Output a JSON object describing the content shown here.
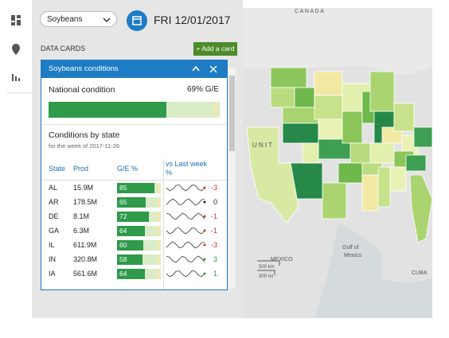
{
  "toolbar": {
    "crop": "Soybeans",
    "date": "FRI 12/01/2017"
  },
  "panel": {
    "heading": "DATA CARDS",
    "add_button": "+ Add a card"
  },
  "card": {
    "title": "Soybeans conditions",
    "national_label": "National condition",
    "national_value": 69,
    "national_value_label": "69% G/E",
    "section_title": "Conditions by state",
    "section_subtitle": "for the week of 2017-11-26",
    "columns": [
      "State",
      "Prod",
      "G/E %",
      "vs Last week %"
    ],
    "rows": [
      [
        "AL",
        "15.9M",
        85,
        -3
      ],
      [
        "AR",
        "178.5M",
        65,
        0
      ],
      [
        "DE",
        "8.1M",
        72,
        -1
      ],
      [
        "GA",
        "6.3M",
        64,
        -1
      ],
      [
        "IL",
        "611.9M",
        60,
        -3
      ],
      [
        "IN",
        "320.8M",
        58,
        3
      ],
      [
        "IA",
        "561.6M",
        64,
        1
      ]
    ]
  },
  "map": {
    "labels": [
      "C A N A D A",
      "U N I T",
      "MEXICO",
      "Gulf of",
      "Mexico",
      "CUBA",
      "500 km",
      "300 mi"
    ]
  }
}
